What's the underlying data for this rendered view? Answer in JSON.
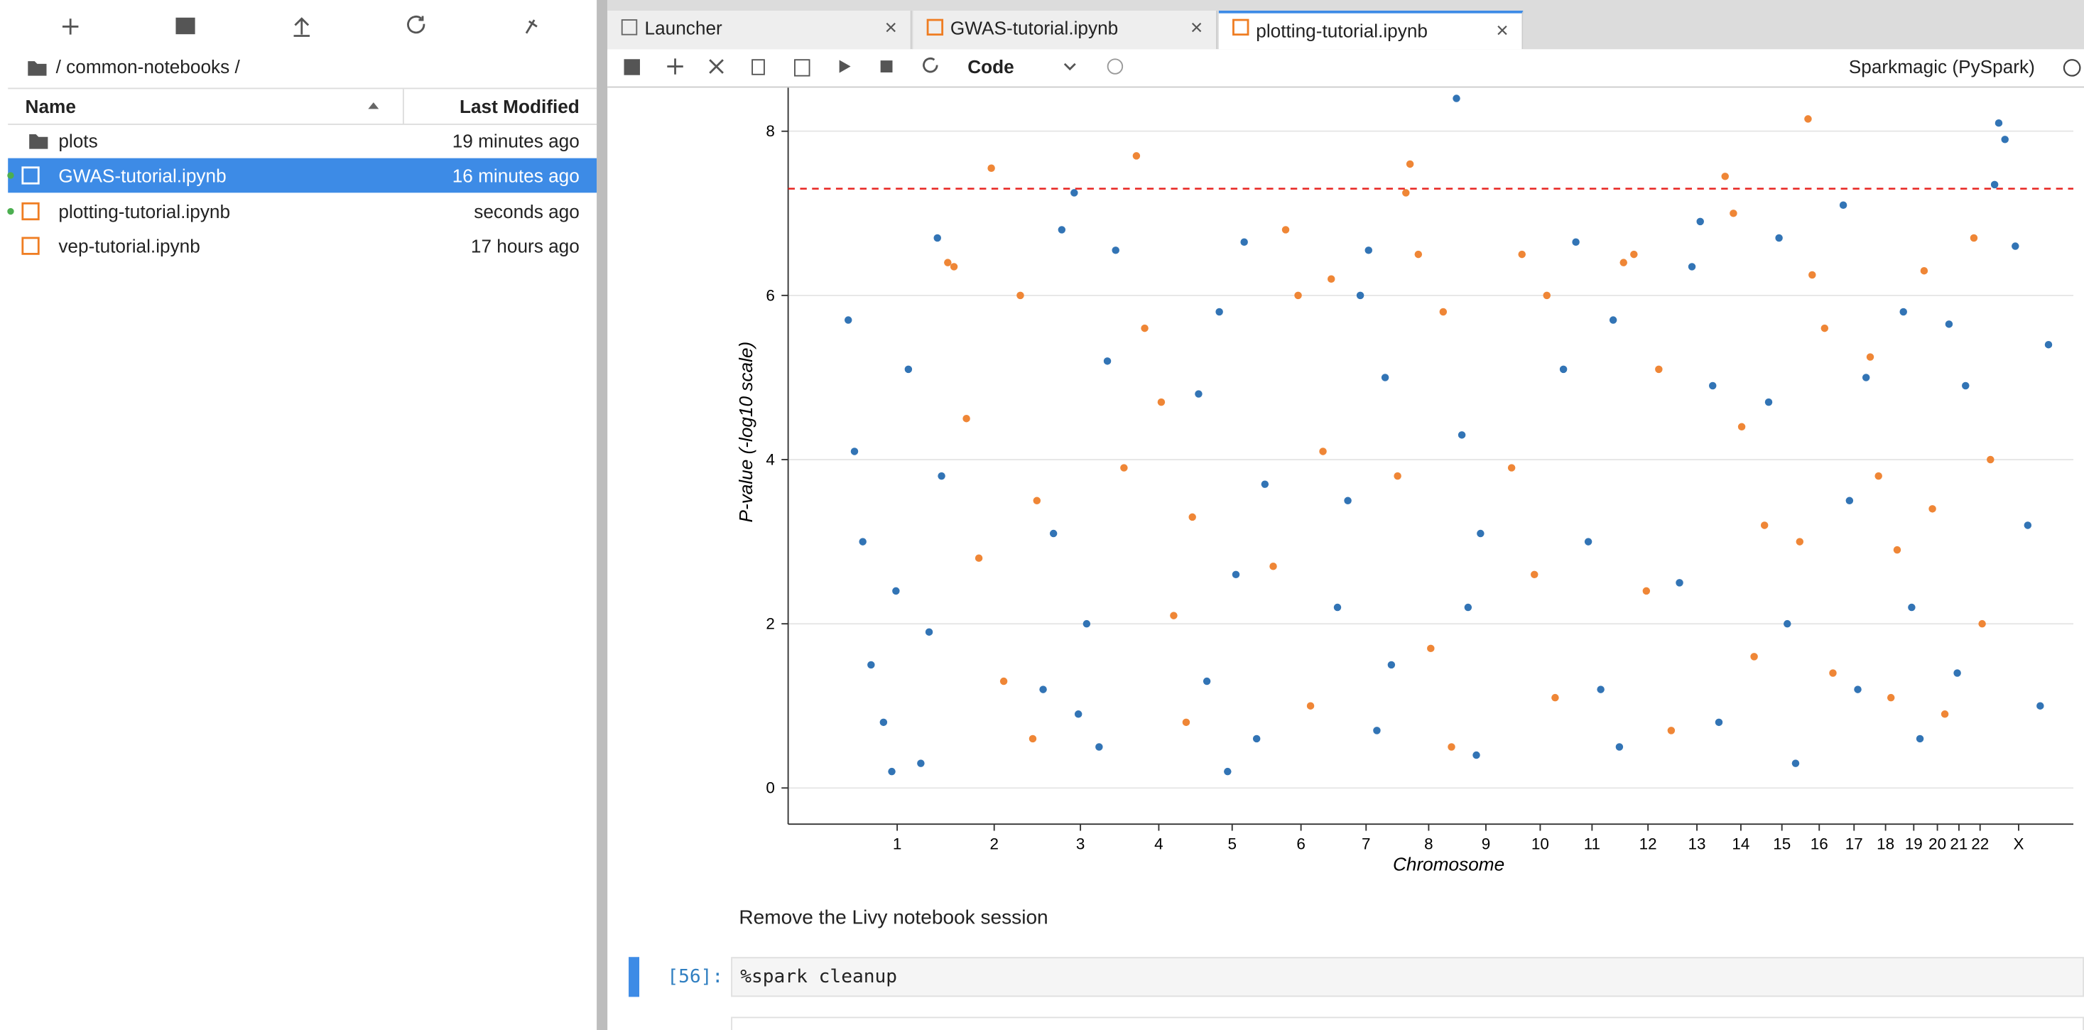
{
  "file_browser": {
    "breadcrumb": "/ common-notebooks /",
    "columns": [
      "Name",
      "Last Modified"
    ],
    "files": [
      {
        "name": "plots",
        "modified": "19 minutes ago"
      },
      {
        "name": "GWAS-tutorial.ipynb",
        "modified": "16 minutes ago"
      },
      {
        "name": "plotting-tutorial.ipynb",
        "modified": "seconds ago"
      },
      {
        "name": "vep-tutorial.ipynb",
        "modified": "17 hours ago"
      }
    ]
  },
  "tabs": [
    "Launcher",
    "GWAS-tutorial.ipynb",
    "plotting-tutorial.ipynb"
  ],
  "toolbar": {
    "cell_type": "Code",
    "kernel": "Sparkmagic (PySpark)"
  },
  "notebook": {
    "markdown": "Remove the Livy notebook session",
    "prompt": "[56]:",
    "code": "%spark cleanup"
  },
  "chart_data": {
    "type": "scatter",
    "xlabel": "Chromosome",
    "ylabel": "P-value (-log10 scale)",
    "xlim": [
      0,
      3100
    ],
    "ylim": [
      -0.44,
      8.53
    ],
    "yticks": [
      0,
      2,
      4,
      6,
      8
    ],
    "grid": true,
    "threshold": 7.3,
    "threshold_color": "#e8231f",
    "xticks": [
      {
        "value": 263,
        "label": "1"
      },
      {
        "value": 497,
        "label": "2"
      },
      {
        "value": 705,
        "label": "3"
      },
      {
        "value": 894,
        "label": "4"
      },
      {
        "value": 1071,
        "label": "5"
      },
      {
        "value": 1237,
        "label": "6"
      },
      {
        "value": 1394,
        "label": "7"
      },
      {
        "value": 1545,
        "label": "8"
      },
      {
        "value": 1683,
        "label": "9"
      },
      {
        "value": 1814,
        "label": "10"
      },
      {
        "value": 1939,
        "label": "11"
      },
      {
        "value": 2074,
        "label": "12"
      },
      {
        "value": 2192,
        "label": "13"
      },
      {
        "value": 2298,
        "label": "14"
      },
      {
        "value": 2397,
        "label": "15"
      },
      {
        "value": 2487,
        "label": "16"
      },
      {
        "value": 2571,
        "label": "17"
      },
      {
        "value": 2647,
        "label": "18"
      },
      {
        "value": 2715,
        "label": "19"
      },
      {
        "value": 2772,
        "label": "20"
      },
      {
        "value": 2824,
        "label": "21"
      },
      {
        "value": 2875,
        "label": "22"
      },
      {
        "value": 2968,
        "label": "X"
      }
    ],
    "series": [
      {
        "color": "#3274b5",
        "x": [
          145,
          160,
          180,
          200,
          230,
          260,
          290,
          320,
          340,
          360,
          370,
          250,
          615,
          640,
          660,
          690,
          720,
          750,
          770,
          790,
          700,
          990,
          1010,
          1040,
          1080,
          1100,
          1130,
          1150,
          1060,
          1325,
          1350,
          1380,
          1400,
          1420,
          1440,
          1455,
          1612,
          1625,
          1640,
          1660,
          1670,
          1870,
          1900,
          1930,
          1960,
          1990,
          2005,
          2150,
          2180,
          2200,
          2230,
          2245,
          2365,
          2390,
          2410,
          2430,
          2545,
          2560,
          2580,
          2600,
          2690,
          2710,
          2730,
          2800,
          2820,
          2840,
          2910,
          2920,
          2935,
          2960,
          2990,
          3020,
          3040
        ],
        "values": [
          5.7,
          4.1,
          3.0,
          1.5,
          0.8,
          2.4,
          5.1,
          0.3,
          1.9,
          6.7,
          3.8,
          0.2,
          1.2,
          3.1,
          6.8,
          7.25,
          2.0,
          0.5,
          5.2,
          6.55,
          0.9,
          4.8,
          1.3,
          5.8,
          2.6,
          6.65,
          0.6,
          3.7,
          0.2,
          2.2,
          3.5,
          6.0,
          6.55,
          0.7,
          5.0,
          1.5,
          8.4,
          4.3,
          2.2,
          0.4,
          3.1,
          5.1,
          6.65,
          3.0,
          1.2,
          5.7,
          0.5,
          2.5,
          6.35,
          6.9,
          4.9,
          0.8,
          4.7,
          6.7,
          2.0,
          0.3,
          7.1,
          3.5,
          1.2,
          5.0,
          5.8,
          2.2,
          0.6,
          5.65,
          1.4,
          4.9,
          7.35,
          8.1,
          7.9,
          6.6,
          3.2,
          1.0,
          5.4
        ]
      },
      {
        "color": "#ef8636",
        "x": [
          385,
          400,
          430,
          460,
          490,
          520,
          560,
          590,
          600,
          810,
          840,
          860,
          900,
          930,
          960,
          975,
          1170,
          1200,
          1230,
          1260,
          1290,
          1310,
          1470,
          1490,
          1500,
          1520,
          1550,
          1580,
          1600,
          1745,
          1770,
          1800,
          1830,
          1850,
          2015,
          2040,
          2070,
          2100,
          2130,
          2260,
          2280,
          2300,
          2330,
          2355,
          2440,
          2460,
          2470,
          2500,
          2520,
          2610,
          2630,
          2660,
          2675,
          2740,
          2760,
          2790,
          2860,
          2880,
          2900
        ],
        "values": [
          6.4,
          6.35,
          4.5,
          2.8,
          7.55,
          1.3,
          6.0,
          0.6,
          3.5,
          3.9,
          7.7,
          5.6,
          4.7,
          2.1,
          0.8,
          3.3,
          2.7,
          6.8,
          6.0,
          1.0,
          4.1,
          6.2,
          3.8,
          7.25,
          7.6,
          6.5,
          1.7,
          5.8,
          0.5,
          3.9,
          6.5,
          2.6,
          6.0,
          1.1,
          6.4,
          6.5,
          2.4,
          5.1,
          0.7,
          7.45,
          7.0,
          4.4,
          1.6,
          3.2,
          3.0,
          8.15,
          6.25,
          5.6,
          1.4,
          5.25,
          3.8,
          1.1,
          2.9,
          6.3,
          3.4,
          0.9,
          6.7,
          2.0,
          4.0
        ]
      }
    ]
  }
}
